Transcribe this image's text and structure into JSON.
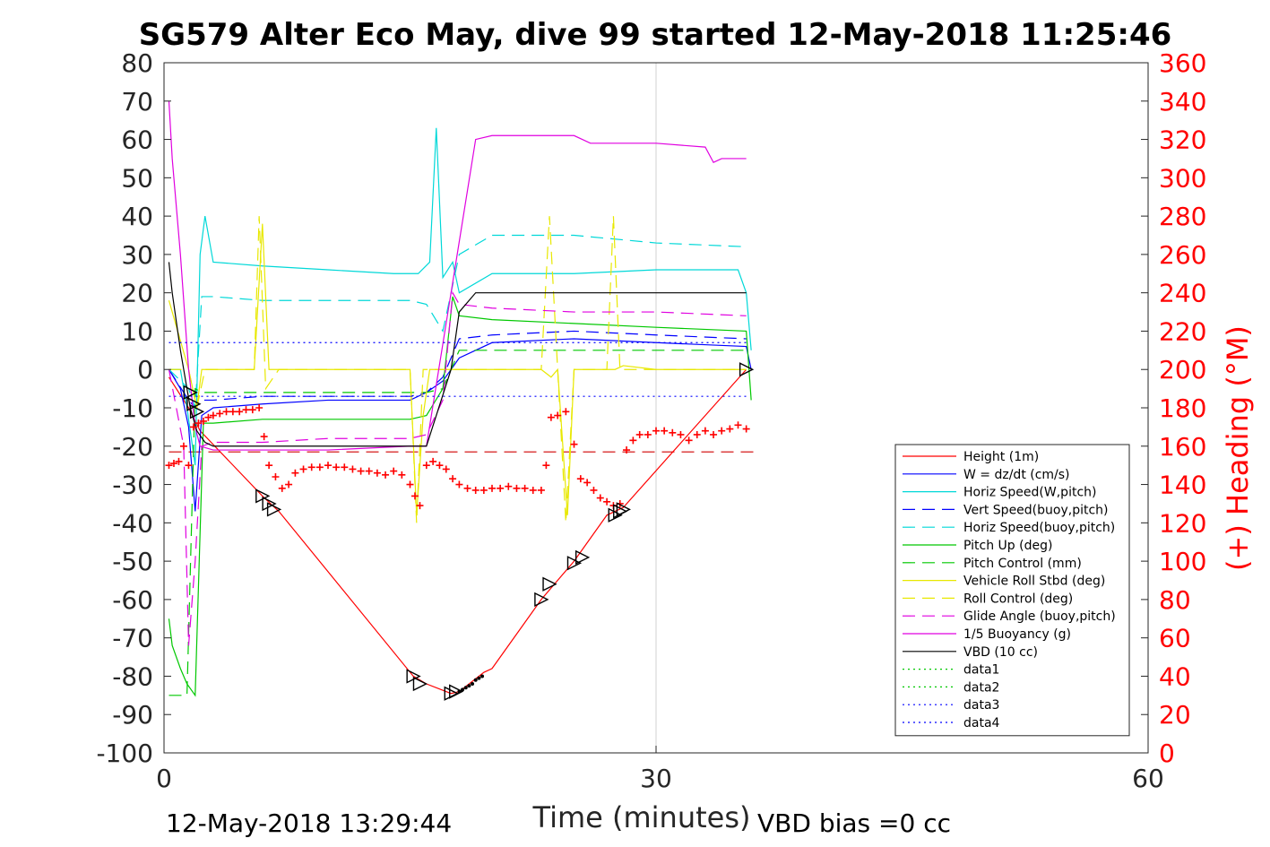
{
  "chart_data": {
    "type": "line",
    "title": "SG579 Alter Eco May, dive 99 started 12-May-2018 11:25:46",
    "xlabel": "Time (minutes)",
    "ylabel": "",
    "y2label": "(+) Heading (°M)",
    "xlim": [
      0,
      60
    ],
    "ylim": [
      -100,
      80
    ],
    "y2lim": [
      0,
      360
    ],
    "xticks": [
      "0",
      "30",
      "60"
    ],
    "yticks": [
      "80",
      "70",
      "60",
      "50",
      "40",
      "30",
      "20",
      "10",
      "0",
      "-10",
      "-20",
      "-30",
      "-40",
      "-50",
      "-60",
      "-70",
      "-80",
      "-90",
      "-100"
    ],
    "y2ticks": [
      "360",
      "340",
      "320",
      "300",
      "280",
      "260",
      "240",
      "220",
      "200",
      "180",
      "160",
      "140",
      "120",
      "100",
      "80",
      "60",
      "40",
      "20",
      "0"
    ],
    "grid": "x at 30",
    "legend_position": "lower-right",
    "footer_left": "12-May-2018 13:29:44",
    "footer_right": "VBD bias =0 cc",
    "series": [
      {
        "name": "Height (1m)",
        "color": "#ff0000",
        "style": "solid",
        "x": [
          0.3,
          1.5,
          2.2,
          6,
          7,
          15.2,
          16,
          17.5,
          18,
          19.5,
          20,
          23,
          25,
          27,
          28,
          35.5
        ],
        "y": [
          -2,
          -10,
          -16,
          -33,
          -37,
          -80,
          -82,
          -84.5,
          -84,
          -79,
          -78,
          -60,
          -50,
          -38,
          -36,
          0
        ]
      },
      {
        "name": "W = dz/dt (cm/s)",
        "color": "#0000ff",
        "style": "solid",
        "x": [
          0.3,
          1.0,
          1.5,
          1.9,
          2.3,
          3,
          6,
          10,
          15,
          16,
          17,
          18,
          20,
          25,
          30,
          35.5,
          35.8
        ],
        "y": [
          0,
          -5,
          -15,
          -37,
          -12,
          -10,
          -9,
          -8,
          -8,
          -6,
          -3,
          3,
          7,
          8,
          7,
          6,
          0
        ]
      },
      {
        "name": "Horiz Speed(W,pitch)",
        "color": "#00d8d8",
        "style": "solid",
        "x": [
          0.3,
          1.0,
          1.4,
          1.9,
          2.2,
          2.5,
          3,
          6,
          10,
          14,
          15.5,
          16.2,
          16.6,
          17,
          17.6,
          18,
          20,
          25,
          30,
          35,
          35.5,
          35.8
        ],
        "y": [
          0,
          0,
          -10,
          -25,
          30,
          40,
          28,
          27,
          26,
          25,
          25,
          28,
          63,
          24,
          28,
          20,
          25,
          25,
          26,
          26,
          20,
          5
        ]
      },
      {
        "name": "Vert Speed(buoy,pitch)",
        "color": "#0000ff",
        "style": "dash",
        "x": [
          0.3,
          1.5,
          1.9,
          2.3,
          3,
          6,
          10,
          15,
          16,
          17,
          18,
          20,
          25,
          30,
          35.5
        ],
        "y": [
          0,
          -8,
          -10,
          -8,
          -8,
          -7,
          -7,
          -7,
          -6,
          -2,
          8,
          9,
          10,
          9,
          8
        ]
      },
      {
        "name": "Horiz Speed(buoy,pitch)",
        "color": "#00d8d8",
        "style": "dash",
        "x": [
          0.3,
          1.5,
          1.9,
          2.3,
          3,
          6,
          10,
          15,
          16,
          17,
          18,
          20,
          25,
          30,
          35.5
        ],
        "y": [
          0,
          -5,
          -10,
          19,
          19,
          18,
          18,
          18,
          17,
          10,
          30,
          35,
          35,
          33,
          32
        ]
      },
      {
        "name": "Pitch Up (deg)",
        "color": "#00c800",
        "style": "solid",
        "x": [
          0.3,
          0.5,
          1.0,
          1.4,
          1.9,
          2.4,
          3,
          6,
          10,
          15,
          16,
          17,
          17.6,
          18,
          20,
          25,
          30,
          35.5,
          35.8
        ],
        "y": [
          -65,
          -72,
          -78,
          -82,
          -85,
          -14,
          -14,
          -13,
          -13,
          -13,
          -12,
          -5,
          19,
          14,
          13,
          12,
          11,
          10,
          -8
        ]
      },
      {
        "name": "Pitch Control (mm)",
        "color": "#00c800",
        "style": "dash",
        "x": [
          0.3,
          1.4,
          1.9,
          2.3,
          5,
          10,
          15,
          16,
          17,
          18,
          25,
          35.5
        ],
        "y": [
          -85,
          -85,
          -5,
          -6,
          -6,
          -6,
          -6,
          -6,
          -5,
          5,
          5,
          5
        ]
      },
      {
        "name": "Vehicle Roll Stbd (deg)",
        "color": "#e8e800",
        "style": "solid",
        "x": [
          0.3,
          1.5,
          2.0,
          2.3,
          5.5,
          6.0,
          6.4,
          7,
          10,
          15,
          15.4,
          15.8,
          16.2,
          17,
          17.6,
          20,
          23,
          23.6,
          24,
          24.6,
          25,
          27,
          27.5,
          28,
          30,
          35.5
        ],
        "y": [
          18,
          0,
          -10,
          0,
          0,
          38,
          0,
          0,
          0,
          0,
          -38,
          -12,
          0,
          0,
          0,
          0,
          0,
          -2,
          0,
          -38,
          0,
          0,
          0,
          1,
          0,
          0
        ]
      },
      {
        "name": "Roll Control (deg)",
        "color": "#e8e800",
        "style": "dash",
        "x": [
          0.3,
          1.5,
          2.0,
          2.5,
          5.5,
          5.8,
          6.2,
          7,
          10,
          15,
          15.4,
          15.8,
          16.5,
          17,
          18,
          20,
          23,
          23.5,
          24,
          24.5,
          25,
          27,
          27.4,
          27.8,
          30,
          35.5
        ],
        "y": [
          0,
          0,
          -10,
          0,
          0,
          40,
          -5,
          0,
          0,
          0,
          -40,
          0,
          0,
          0,
          0,
          0,
          0,
          40,
          0,
          -40,
          0,
          0,
          40,
          0,
          0,
          0
        ]
      },
      {
        "name": "Glide Angle (buoy,pitch)",
        "color": "#e000e0",
        "style": "dash",
        "x": [
          0.3,
          1.2,
          1.5,
          1.9,
          2.3,
          3,
          6,
          10,
          15,
          16,
          17,
          17.6,
          18,
          20,
          25,
          30,
          35.5
        ],
        "y": [
          0,
          -20,
          -72,
          -50,
          -20,
          -19,
          -19,
          -18,
          -18,
          -17,
          -8,
          20,
          17,
          16,
          15,
          15,
          14
        ]
      },
      {
        "name": "1/5 Buoyancy (g)",
        "color": "#e000e0",
        "style": "solid",
        "x": [
          0.3,
          0.5,
          1.0,
          1.5,
          1.9,
          2.2,
          3,
          6,
          10,
          15,
          16,
          17.5,
          19,
          20,
          25,
          26,
          30,
          33,
          33.5,
          34,
          35.5
        ],
        "y": [
          70,
          55,
          30,
          0,
          -15,
          -20,
          -21,
          -21,
          -21,
          -20,
          -20,
          20,
          60,
          61,
          61,
          59,
          59,
          58,
          54,
          55,
          55
        ]
      },
      {
        "name": "VBD (10 cc)",
        "color": "#000000",
        "style": "solid",
        "x": [
          0.3,
          0.5,
          1.0,
          1.6,
          2.0,
          2.5,
          3,
          10,
          15,
          16,
          17.5,
          18,
          19,
          20,
          25,
          30,
          35.5
        ],
        "y": [
          28,
          20,
          5,
          -10,
          -16,
          -19,
          -20,
          -20,
          -20,
          -20,
          0,
          15,
          20,
          20,
          20,
          20,
          20
        ]
      },
      {
        "name": "data1",
        "color": "#00c800",
        "style": "dot",
        "x": [],
        "y": []
      },
      {
        "name": "data2",
        "color": "#00c800",
        "style": "dot",
        "x": [],
        "y": []
      },
      {
        "name": "data3",
        "color": "#0000ff",
        "style": "dot",
        "x": [
          0.3,
          35.5
        ],
        "y": [
          7,
          7
        ]
      },
      {
        "name": "data4",
        "color": "#0000ff",
        "style": "dot",
        "x": [
          0.3,
          35.5
        ],
        "y": [
          -7,
          -7
        ]
      }
    ],
    "heading_ref": {
      "color": "#d00000",
      "style": "dash",
      "x": [
        0.3,
        36
      ],
      "y2": [
        157,
        157
      ]
    },
    "heading_points": {
      "color": "#ff0000",
      "x": [
        0.3,
        0.6,
        0.9,
        1.2,
        1.5,
        1.8,
        2.1,
        2.4,
        2.7,
        3.0,
        3.4,
        3.8,
        4.2,
        4.6,
        5.0,
        5.4,
        5.8,
        6.1,
        6.4,
        6.8,
        7.2,
        7.6,
        8.0,
        8.5,
        9.0,
        9.5,
        10,
        10.5,
        11,
        11.5,
        12,
        12.5,
        13,
        13.5,
        14,
        14.5,
        15,
        15.3,
        15.6,
        16,
        16.4,
        16.8,
        17.2,
        17.6,
        18.0,
        18.5,
        19,
        19.5,
        20,
        20.5,
        21,
        21.5,
        22,
        22.5,
        23,
        23.3,
        23.6,
        24.0,
        24.5,
        25.0,
        25.4,
        25.8,
        26.2,
        26.6,
        27.0,
        27.4,
        27.8,
        28.2,
        28.6,
        29,
        29.5,
        30,
        30.5,
        31,
        31.5,
        32,
        32.5,
        33,
        33.5,
        34,
        34.5,
        35,
        35.5
      ],
      "y2": [
        150,
        151,
        152,
        160,
        150,
        170,
        172,
        173,
        175,
        176,
        177,
        178,
        178,
        178,
        179,
        179,
        180,
        165,
        150,
        144,
        138,
        140,
        146,
        148,
        149,
        149,
        150,
        149,
        149,
        148,
        147,
        147,
        146,
        145,
        147,
        145,
        140,
        134,
        129,
        150,
        152,
        150,
        148,
        143,
        140,
        138,
        137,
        137,
        138,
        138,
        139,
        138,
        138,
        137,
        137,
        150,
        175,
        176,
        178,
        161,
        143,
        141,
        137,
        133,
        131,
        129,
        130,
        158,
        163,
        166,
        166,
        168,
        168,
        167,
        166,
        163,
        166,
        168,
        166,
        168,
        169,
        171,
        169
      ]
    },
    "apogee_points": {
      "color": "#000000",
      "x": [
        18.0,
        18.2,
        18.4,
        18.6,
        18.8,
        19.0,
        19.2,
        19.4
      ],
      "y": [
        -84,
        -83.5,
        -83,
        -82.5,
        -82,
        -81,
        -80.5,
        -80
      ]
    },
    "markers": {
      "color": "#000000",
      "points": [
        {
          "x": 1.6,
          "y": -6
        },
        {
          "x": 1.8,
          "y": -9
        },
        {
          "x": 2.0,
          "y": -11
        },
        {
          "x": 6.0,
          "y": -33
        },
        {
          "x": 6.4,
          "y": -35
        },
        {
          "x": 6.7,
          "y": -36.5
        },
        {
          "x": 15.2,
          "y": -80
        },
        {
          "x": 15.6,
          "y": -82
        },
        {
          "x": 17.5,
          "y": -84.5
        },
        {
          "x": 17.8,
          "y": -84
        },
        {
          "x": 23.0,
          "y": -60
        },
        {
          "x": 23.5,
          "y": -56
        },
        {
          "x": 25.0,
          "y": -50.5
        },
        {
          "x": 25.5,
          "y": -49
        },
        {
          "x": 27.5,
          "y": -38
        },
        {
          "x": 27.8,
          "y": -37
        },
        {
          "x": 28.0,
          "y": -36.5
        },
        {
          "x": 35.5,
          "y": 0
        }
      ]
    }
  }
}
